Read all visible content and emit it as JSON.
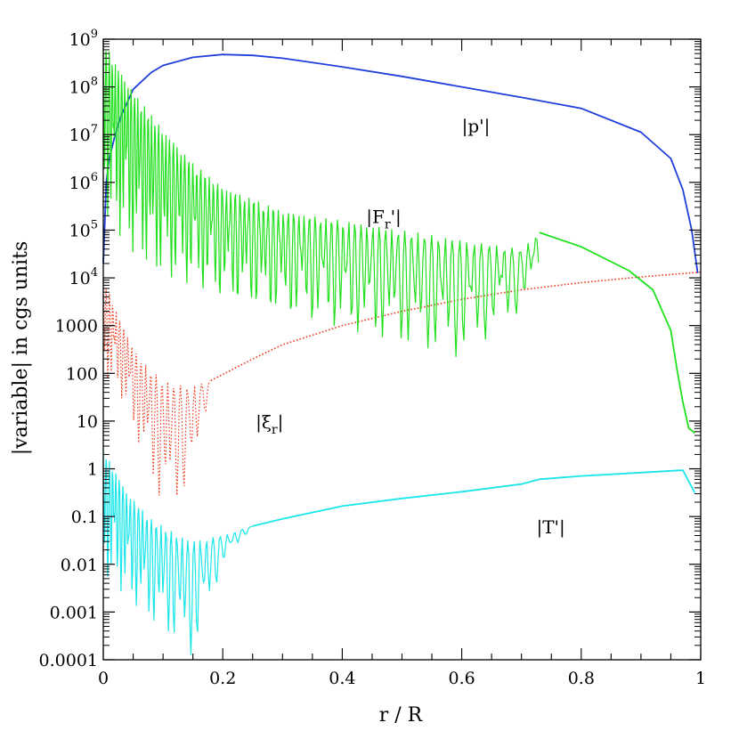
{
  "chart_data": {
    "type": "line",
    "title": "",
    "xlabel": "r / R",
    "ylabel": "|variable| in cgs units",
    "xlim": [
      0,
      1
    ],
    "ylim_log10": [
      -4,
      9
    ],
    "y_scale": "log",
    "x_ticks": [
      {
        "value": 0,
        "label": "0"
      },
      {
        "value": 0.2,
        "label": "0.2"
      },
      {
        "value": 0.4,
        "label": "0.4"
      },
      {
        "value": 0.6,
        "label": "0.6"
      },
      {
        "value": 0.8,
        "label": "0.8"
      },
      {
        "value": 1,
        "label": "1"
      }
    ],
    "y_ticks": [
      {
        "exp": 9,
        "label": "10",
        "sup": "9"
      },
      {
        "exp": 8,
        "label": "10",
        "sup": "8"
      },
      {
        "exp": 7,
        "label": "10",
        "sup": "7"
      },
      {
        "exp": 6,
        "label": "10",
        "sup": "6"
      },
      {
        "exp": 5,
        "label": "10",
        "sup": "5"
      },
      {
        "exp": 4,
        "label": "10",
        "sup": "4"
      },
      {
        "exp": 3,
        "label": "1000",
        "sup": ""
      },
      {
        "exp": 2,
        "label": "100",
        "sup": ""
      },
      {
        "exp": 1,
        "label": "10",
        "sup": ""
      },
      {
        "exp": 0,
        "label": "1",
        "sup": ""
      },
      {
        "exp": -1,
        "label": "0.1",
        "sup": ""
      },
      {
        "exp": -2,
        "label": "0.01",
        "sup": ""
      },
      {
        "exp": -3,
        "label": "0.001",
        "sup": ""
      },
      {
        "exp": -4,
        "label": "0.0001",
        "sup": ""
      }
    ],
    "series": [
      {
        "name": "|p'|",
        "color": "#1f3fdc",
        "style": "solid",
        "x": [
          0.0,
          0.005,
          0.01,
          0.02,
          0.03,
          0.05,
          0.08,
          0.1,
          0.15,
          0.2,
          0.25,
          0.3,
          0.4,
          0.5,
          0.6,
          0.7,
          0.8,
          0.9,
          0.95,
          0.97,
          0.985,
          0.995
        ],
        "log10_y": [
          4.3,
          6.0,
          6.5,
          7.0,
          7.4,
          7.95,
          8.3,
          8.45,
          8.62,
          8.68,
          8.66,
          8.6,
          8.42,
          8.22,
          8.0,
          7.78,
          7.55,
          7.05,
          6.5,
          5.85,
          5.0,
          4.1
        ]
      },
      {
        "name": "|F_r'|",
        "color": "#22e01e",
        "style": "solid",
        "envelope_x": [
          0.0,
          0.02,
          0.05,
          0.1,
          0.15,
          0.2,
          0.3,
          0.4,
          0.5,
          0.6,
          0.7,
          0.73
        ],
        "envelope_top_log10": [
          9.0,
          8.5,
          7.9,
          7.1,
          6.4,
          5.9,
          5.4,
          5.2,
          5.0,
          4.8,
          4.6,
          4.95
        ],
        "envelope_bottom_log10": [
          5.4,
          5.0,
          4.5,
          4.0,
          3.8,
          3.5,
          3.2,
          2.9,
          2.6,
          2.3,
          3.3,
          4.0
        ],
        "x": [
          0.73,
          0.8,
          0.88,
          0.92,
          0.95,
          0.96,
          0.97,
          0.98,
          0.99
        ],
        "log10_y": [
          4.95,
          4.65,
          4.15,
          3.75,
          2.9,
          2.1,
          1.4,
          0.85,
          0.75
        ]
      },
      {
        "name": "|ξ_r|",
        "color": "#ee3a1e",
        "style": "dotted",
        "envelope_x": [
          0.0,
          0.03,
          0.06,
          0.1,
          0.13,
          0.15,
          0.18
        ],
        "envelope_top_log10": [
          4.0,
          3.05,
          2.3,
          1.85,
          1.75,
          1.75,
          1.85
        ],
        "envelope_bottom_log10": [
          2.0,
          1.5,
          0.5,
          -0.85,
          -0.6,
          -0.3,
          1.8
        ],
        "x": [
          0.18,
          0.25,
          0.3,
          0.4,
          0.5,
          0.6,
          0.7,
          0.8,
          0.9,
          1.0
        ],
        "log10_y": [
          1.85,
          2.3,
          2.6,
          3.0,
          3.3,
          3.55,
          3.75,
          3.9,
          4.02,
          4.12
        ]
      },
      {
        "name": "|T'|",
        "color": "#1ae6ea",
        "style": "solid",
        "envelope_x": [
          0.0,
          0.04,
          0.08,
          0.12,
          0.15,
          0.2,
          0.25
        ],
        "envelope_top_log10": [
          0.4,
          -0.5,
          -1.05,
          -1.35,
          -1.5,
          -1.4,
          -1.2
        ],
        "envelope_bottom_log10": [
          -2.2,
          -2.7,
          -3.2,
          -3.6,
          -4.0,
          -2.0,
          -1.2
        ],
        "x": [
          0.25,
          0.3,
          0.4,
          0.5,
          0.6,
          0.7,
          0.73,
          0.8,
          0.9,
          0.97,
          0.99
        ],
        "log10_y": [
          -1.2,
          -1.05,
          -0.78,
          -0.62,
          -0.48,
          -0.32,
          -0.22,
          -0.15,
          -0.08,
          -0.03,
          -0.5
        ]
      }
    ],
    "annotations": [
      {
        "text": "|p'|",
        "main": "|p'|",
        "sub": "",
        "tail": "",
        "x": 0.6,
        "log10_y": 7.05
      },
      {
        "text": "|F_r'|",
        "main": "|F",
        "sub": "r",
        "tail": "'|",
        "x": 0.44,
        "log10_y": 5.15
      },
      {
        "text": "|ξ_r|",
        "main": "|ξ",
        "sub": "r",
        "tail": "|",
        "x": 0.255,
        "log10_y": 0.85
      },
      {
        "text": "|T'|",
        "main": "|T'|",
        "sub": "",
        "tail": "",
        "x": 0.725,
        "log10_y": -1.35
      }
    ]
  }
}
